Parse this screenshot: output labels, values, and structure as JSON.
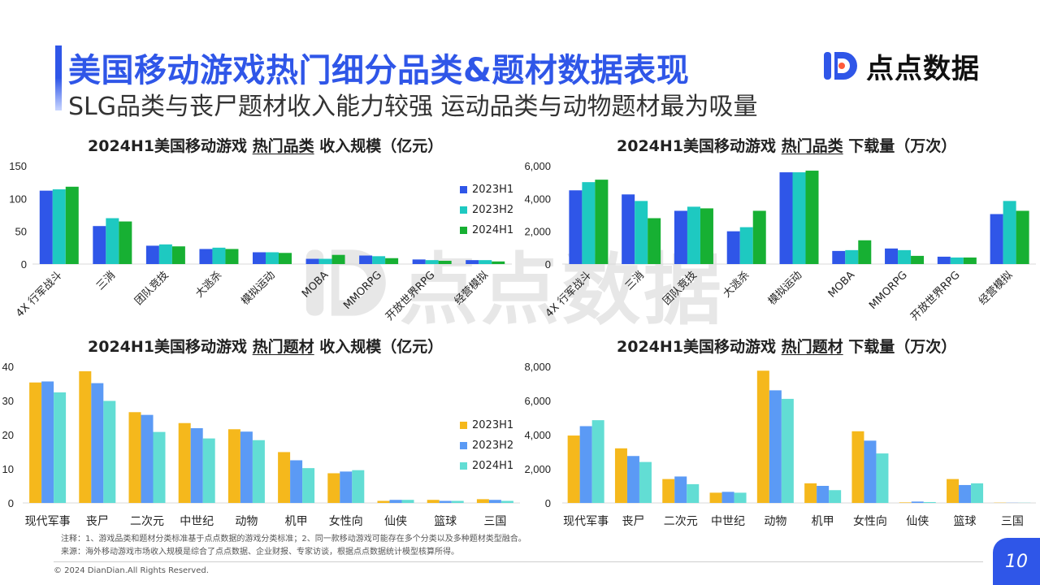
{
  "header": {
    "title": "美国移动游戏热门细分品类&题材数据表现",
    "subtitle": "SLG品类与丧尸题材收入能力较强 运动品类与动物题材最为吸量"
  },
  "brand": {
    "name": "点点数据",
    "logo_icon": "diandian-logo-icon",
    "color": "#2f56e8"
  },
  "colors": {
    "category_series": [
      "#2f56e8",
      "#1ec9c1",
      "#17b033"
    ],
    "theme_series": [
      "#f5b81c",
      "#5b9af5",
      "#62ddd4"
    ]
  },
  "charts": {
    "cat_revenue": {
      "title_prefix": "2024H1美国移动游戏 ",
      "title_em": "热门品类",
      "title_suffix": " 收入规模（亿元）"
    },
    "cat_downloads": {
      "title_prefix": "2024H1美国移动游戏 ",
      "title_em": "热门品类",
      "title_suffix": " 下载量（万次）"
    },
    "theme_revenue": {
      "title_prefix": "2024H1美国移动游戏 ",
      "title_em": "热门题材",
      "title_suffix": " 收入规模（亿元）"
    },
    "theme_downloads": {
      "title_prefix": "2024H1美国移动游戏 ",
      "title_em": "热门题材",
      "title_suffix": " 下载量（万次）"
    }
  },
  "legends": {
    "category": [
      "2023H1",
      "2023H2",
      "2024H1"
    ],
    "theme": [
      "2023H1",
      "2023H2",
      "2024H1"
    ]
  },
  "chart_data": [
    {
      "id": "cat_revenue",
      "type": "bar",
      "categories": [
        "4X 行军战斗",
        "三消",
        "团队竞技",
        "大逃杀",
        "模拟运动",
        "MOBA",
        "MMORPG",
        "开放世界RPG",
        "经营模拟"
      ],
      "series": [
        {
          "name": "2023H1",
          "values": [
            112,
            58,
            28,
            23,
            18,
            8,
            13,
            7,
            6
          ]
        },
        {
          "name": "2023H2",
          "values": [
            114,
            70,
            30,
            25,
            18,
            8,
            12,
            6,
            6
          ]
        },
        {
          "name": "2024H1",
          "values": [
            118,
            65,
            27,
            23,
            17,
            14,
            9,
            5,
            4
          ]
        }
      ],
      "ylim": [
        0,
        150
      ],
      "yticks": [
        "0",
        "50",
        "100",
        "150"
      ],
      "ytick_values": [
        0,
        50,
        100,
        150
      ],
      "legend_position": "right",
      "grid": false
    },
    {
      "id": "cat_downloads",
      "type": "bar",
      "categories": [
        "4X 行军战斗",
        "三消",
        "团队竞技",
        "大逃杀",
        "模拟运动",
        "MOBA",
        "MMORPG",
        "开放世界RPG",
        "经营模拟"
      ],
      "series": [
        {
          "name": "2023H1",
          "values": [
            4500,
            4250,
            3250,
            2000,
            5600,
            800,
            950,
            450,
            3050
          ]
        },
        {
          "name": "2023H2",
          "values": [
            5000,
            3850,
            3500,
            2250,
            5600,
            850,
            850,
            400,
            3850
          ]
        },
        {
          "name": "2024H1",
          "values": [
            5150,
            2800,
            3400,
            3250,
            5700,
            1450,
            500,
            400,
            3250
          ]
        }
      ],
      "ylim": [
        0,
        6000
      ],
      "yticks": [
        "0",
        "2,000",
        "4,000",
        "6,000"
      ],
      "ytick_values": [
        0,
        2000,
        4000,
        6000
      ],
      "grid": false
    },
    {
      "id": "theme_revenue",
      "type": "bar",
      "categories": [
        "现代军事",
        "丧尸",
        "二次元",
        "中世纪",
        "动物",
        "机甲",
        "女性向",
        "仙侠",
        "篮球",
        "三国"
      ],
      "series": [
        {
          "name": "2023H1",
          "values": [
            35.3,
            38.6,
            26.6,
            23.4,
            21.6,
            14.9,
            8.7,
            0.6,
            0.9,
            1.1
          ]
        },
        {
          "name": "2023H2",
          "values": [
            35.6,
            35.1,
            25.8,
            21.9,
            20.9,
            12.5,
            9.2,
            0.9,
            0.6,
            0.9
          ]
        },
        {
          "name": "2024H1",
          "values": [
            32.4,
            29.9,
            20.8,
            18.9,
            18.4,
            10.2,
            9.6,
            0.9,
            0.6,
            0.6
          ]
        }
      ],
      "ylim": [
        0,
        40
      ],
      "yticks": [
        "0",
        "10",
        "20",
        "30",
        "40"
      ],
      "ytick_values": [
        0,
        10,
        20,
        30,
        40
      ],
      "legend_position": "right",
      "grid": false
    },
    {
      "id": "theme_downloads",
      "type": "bar",
      "categories": [
        "现代军事",
        "丧尸",
        "二次元",
        "中世纪",
        "动物",
        "机甲",
        "女性向",
        "仙侠",
        "篮球",
        "三国"
      ],
      "series": [
        {
          "name": "2023H1",
          "values": [
            3950,
            3200,
            1400,
            600,
            7750,
            1150,
            4200,
            30,
            1400,
            15
          ]
        },
        {
          "name": "2023H2",
          "values": [
            4500,
            2750,
            1550,
            650,
            6600,
            1000,
            3650,
            80,
            1050,
            10
          ]
        },
        {
          "name": "2024H1",
          "values": [
            4850,
            2400,
            1100,
            600,
            6100,
            750,
            2900,
            50,
            1150,
            10
          ]
        }
      ],
      "ylim": [
        0,
        8000
      ],
      "yticks": [
        "0",
        "2,000",
        "4,000",
        "6,000",
        "8,000"
      ],
      "ytick_values": [
        0,
        2000,
        4000,
        6000,
        8000
      ],
      "grid": false
    }
  ],
  "notes": {
    "line1": "注释：1、游戏品类和题材分类标准基于点点数据的游戏分类标准；2、同一款移动游戏可能存在多个分类以及多种题材类型融合。",
    "line2": "来源：海外移动游戏市场收入规模是综合了点点数据、企业财报、专家访谈，根据点点数据统计模型核算所得。"
  },
  "footer": {
    "copyright": "© 2024 DianDian.All Rights Reserved.",
    "page_number": "10"
  }
}
